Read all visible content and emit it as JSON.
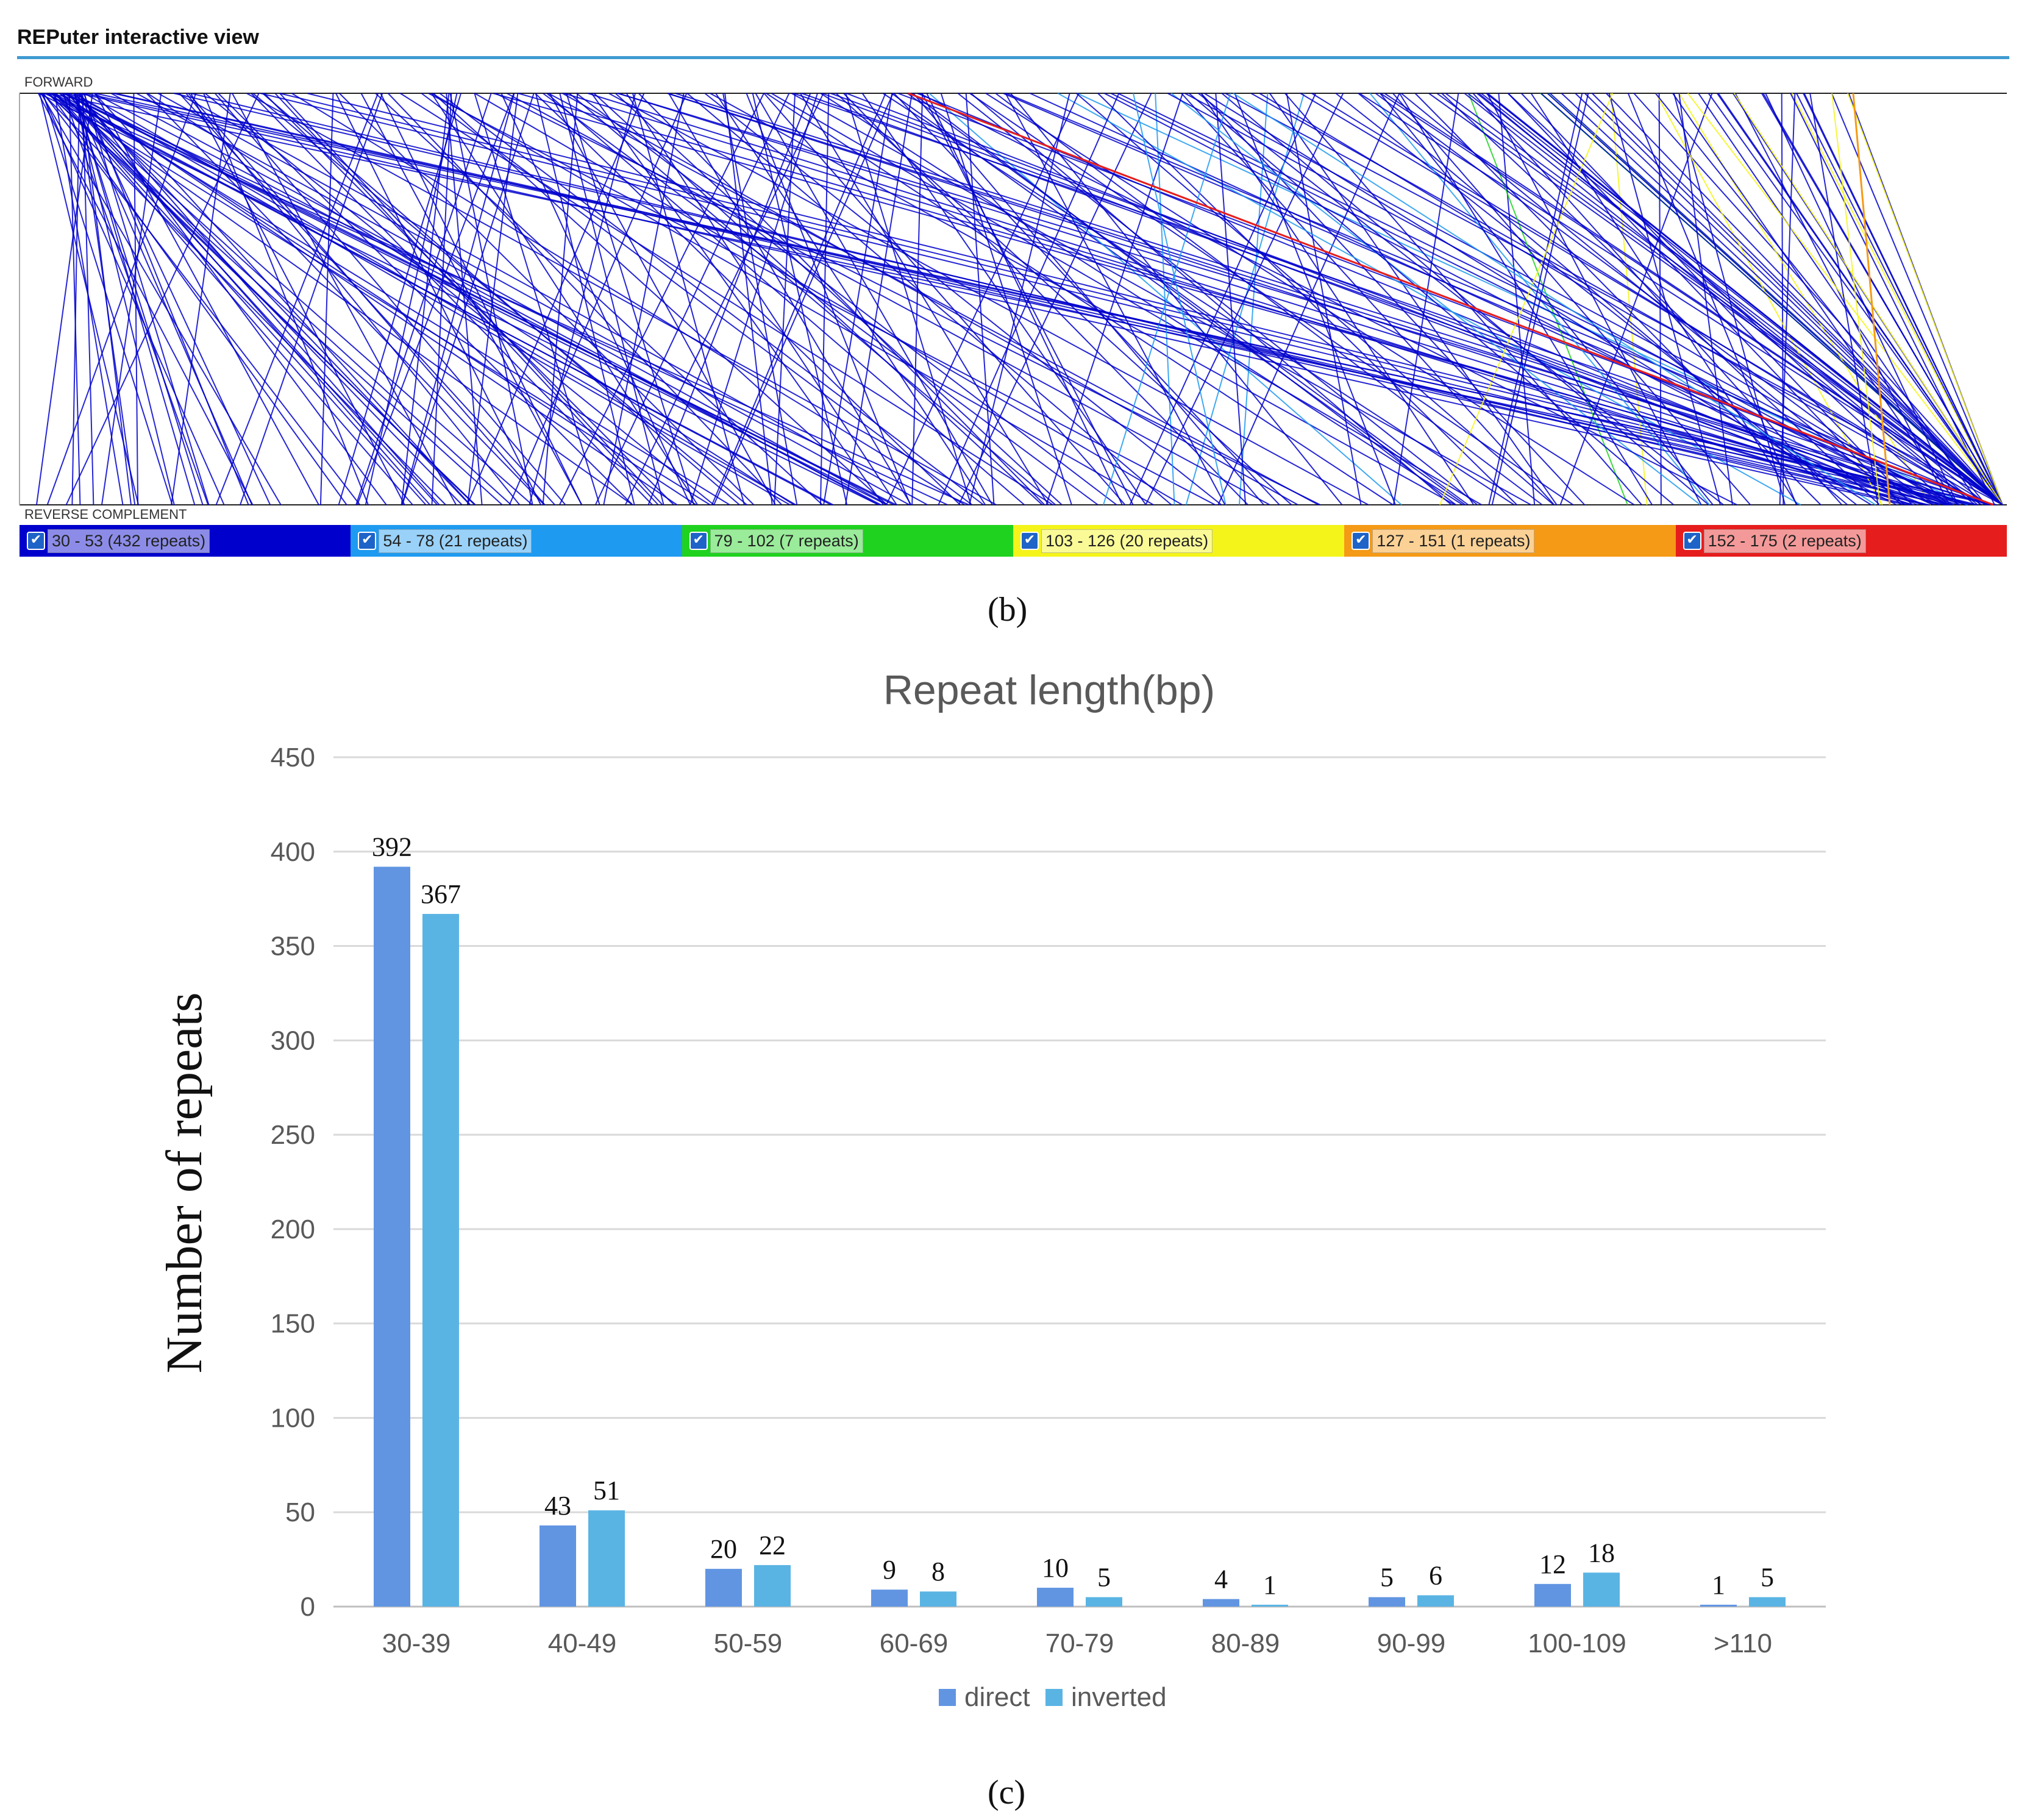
{
  "reputer": {
    "title": "REPuter interactive view",
    "forward_label": "FORWARD",
    "reverse_label": "REVERSE COMPLEMENT",
    "legend": [
      {
        "label": "30 - 53 (432 repeats)",
        "color": "#0000cc"
      },
      {
        "label": "54 - 78 (21 repeats)",
        "color": "#1e9af0"
      },
      {
        "label": "79 - 102 (7 repeats)",
        "color": "#1fd21f"
      },
      {
        "label": "103 - 126 (20 repeats)",
        "color": "#f4f41a"
      },
      {
        "label": "127 - 151 (1 repeats)",
        "color": "#f59a16"
      },
      {
        "label": "152 - 175 (2 repeats)",
        "color": "#e61d1d"
      }
    ],
    "check_mark": "✔"
  },
  "panel_labels": {
    "b": "(b)",
    "c": "(c)"
  },
  "chart_data": {
    "type": "bar",
    "title": "Repeat length(bp)",
    "xlabel": "",
    "ylabel": "Number of repeats",
    "categories": [
      "30-39",
      "40-49",
      "50-59",
      "60-69",
      "70-79",
      "80-89",
      "90-99",
      "100-109",
      ">110"
    ],
    "series": [
      {
        "name": "direct",
        "color": "#6195e2",
        "values": [
          392,
          43,
          20,
          9,
          10,
          4,
          5,
          12,
          1
        ]
      },
      {
        "name": "inverted",
        "color": "#5ab4e3",
        "values": [
          367,
          51,
          22,
          8,
          5,
          1,
          6,
          18,
          5
        ]
      }
    ],
    "yticks": [
      0,
      50,
      100,
      150,
      200,
      250,
      300,
      350,
      400,
      450
    ],
    "ylim": [
      0,
      450
    ],
    "grid": true,
    "legend_position": "bottom"
  }
}
